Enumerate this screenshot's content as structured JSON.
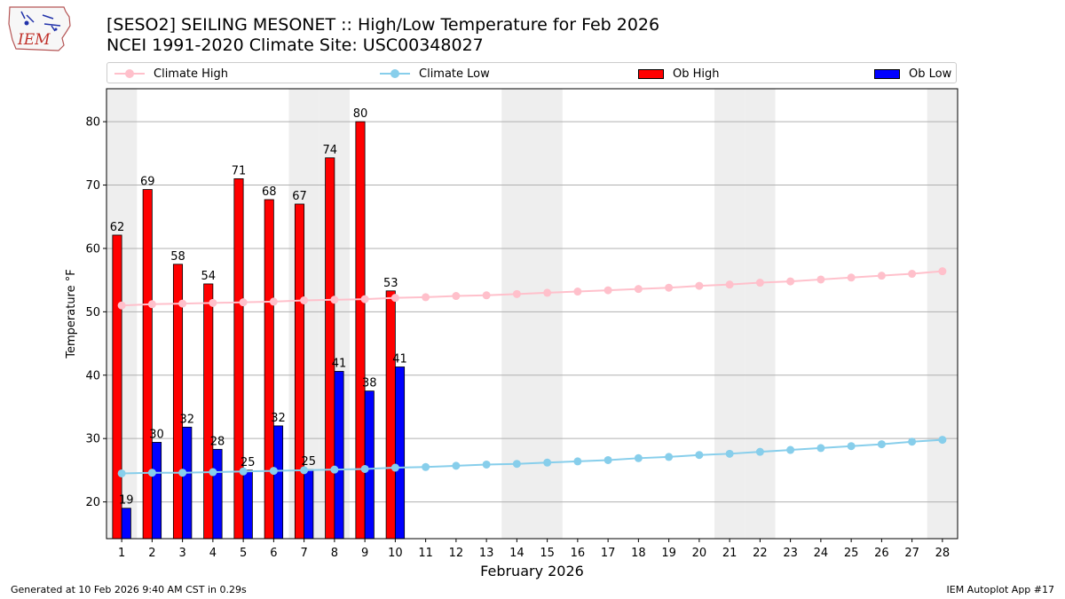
{
  "title_line1": "[SESO2] SEILING MESONET :: High/Low Temperature for Feb 2026",
  "title_line2": "NCEI 1991-2020 Climate Site: USC00348027",
  "logo_text": "IEM",
  "footer_left": "Generated at 10 Feb 2026 9:40 AM CST in 0.29s",
  "footer_right": "IEM Autoplot App #17",
  "colors": {
    "climate_high": "#ffc0cb",
    "climate_low": "#87ceeb",
    "ob_high": "#ff0000",
    "ob_low": "#0000ff",
    "weekend_shade": "#eeeeee",
    "grid": "#b0b0b0"
  },
  "chart_data": {
    "type": "bar",
    "xlabel": "February 2026",
    "ylabel": "Temperature °F",
    "ylim": [
      14.2,
      85.2
    ],
    "yticks": [
      20,
      30,
      40,
      50,
      60,
      70,
      80
    ],
    "xlim": [
      0.5,
      28.5
    ],
    "days": [
      1,
      2,
      3,
      4,
      5,
      6,
      7,
      8,
      9,
      10,
      11,
      12,
      13,
      14,
      15,
      16,
      17,
      18,
      19,
      20,
      21,
      22,
      23,
      24,
      25,
      26,
      27,
      28
    ],
    "weekend_days": [
      1,
      7,
      8,
      14,
      15,
      21,
      22,
      28
    ],
    "grid": "horizontal",
    "legend_position": "top",
    "legend": [
      "Climate High",
      "Climate Low",
      "Ob High",
      "Ob Low"
    ],
    "series": [
      {
        "name": "Ob High",
        "type": "bar",
        "days": [
          1,
          2,
          3,
          4,
          5,
          6,
          7,
          8,
          9,
          10
        ],
        "values": [
          62,
          69,
          58,
          54,
          71,
          68,
          67,
          74,
          80,
          53
        ],
        "plotted": [
          62.1,
          69.3,
          57.5,
          54.4,
          71.0,
          67.7,
          67.0,
          74.3,
          80.0,
          53.3
        ]
      },
      {
        "name": "Ob Low",
        "type": "bar",
        "days": [
          1,
          2,
          3,
          4,
          5,
          6,
          7,
          8,
          9,
          10
        ],
        "values": [
          19,
          30,
          32,
          28,
          25,
          32,
          25,
          41,
          38,
          41
        ],
        "plotted": [
          19.0,
          29.4,
          31.8,
          28.3,
          25.0,
          32.0,
          25.1,
          40.6,
          37.5,
          41.3
        ]
      },
      {
        "name": "Climate High",
        "type": "line",
        "values": [
          51.0,
          51.2,
          51.3,
          51.4,
          51.5,
          51.6,
          51.8,
          51.9,
          52.0,
          52.2,
          52.3,
          52.5,
          52.6,
          52.8,
          53.0,
          53.2,
          53.4,
          53.6,
          53.8,
          54.1,
          54.3,
          54.6,
          54.8,
          55.1,
          55.4,
          55.7,
          56.0,
          56.4
        ]
      },
      {
        "name": "Climate Low",
        "type": "line",
        "values": [
          24.5,
          24.6,
          24.6,
          24.7,
          24.8,
          24.9,
          25.0,
          25.1,
          25.2,
          25.4,
          25.5,
          25.7,
          25.9,
          26.0,
          26.2,
          26.4,
          26.6,
          26.9,
          27.1,
          27.4,
          27.6,
          27.9,
          28.2,
          28.5,
          28.8,
          29.1,
          29.5,
          29.8
        ]
      }
    ]
  }
}
